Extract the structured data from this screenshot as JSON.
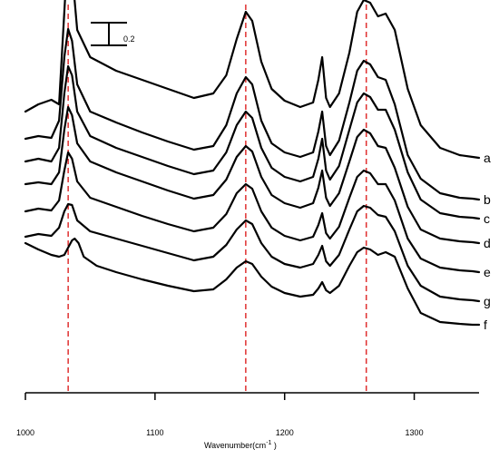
{
  "chart_data": {
    "type": "line",
    "title": "",
    "xlabel": "Wavenumber(cm",
    "xlabel_sup": "-1",
    "xlabel_suffix": " )",
    "xlim": [
      1000,
      1350
    ],
    "x_ticks": [
      1000,
      1100,
      1200,
      1300
    ],
    "reference_lines_x": [
      1033,
      1170,
      1263
    ],
    "reference_line_color": "#e03030",
    "scale_bar_label": "0.2",
    "series": [
      {
        "name": "a",
        "points": [
          [
            1000,
            310
          ],
          [
            1010,
            318
          ],
          [
            1020,
            323
          ],
          [
            1026,
            318
          ],
          [
            1030,
            420
          ],
          [
            1033,
            493
          ],
          [
            1036,
            465
          ],
          [
            1040,
            400
          ],
          [
            1050,
            370
          ],
          [
            1070,
            355
          ],
          [
            1090,
            345
          ],
          [
            1110,
            335
          ],
          [
            1130,
            325
          ],
          [
            1145,
            330
          ],
          [
            1155,
            350
          ],
          [
            1163,
            390
          ],
          [
            1170,
            420
          ],
          [
            1175,
            410
          ],
          [
            1182,
            365
          ],
          [
            1190,
            335
          ],
          [
            1200,
            322
          ],
          [
            1212,
            315
          ],
          [
            1222,
            320
          ],
          [
            1226,
            345
          ],
          [
            1229,
            370
          ],
          [
            1232,
            325
          ],
          [
            1235,
            315
          ],
          [
            1242,
            330
          ],
          [
            1250,
            375
          ],
          [
            1256,
            420
          ],
          [
            1261,
            433
          ],
          [
            1266,
            430
          ],
          [
            1272,
            415
          ],
          [
            1278,
            418
          ],
          [
            1285,
            400
          ],
          [
            1295,
            335
          ],
          [
            1305,
            295
          ],
          [
            1320,
            270
          ],
          [
            1335,
            262
          ],
          [
            1345,
            260
          ],
          [
            1350,
            259
          ]
        ]
      },
      {
        "name": "b",
        "points": [
          [
            1000,
            280
          ],
          [
            1010,
            283
          ],
          [
            1020,
            281
          ],
          [
            1026,
            300
          ],
          [
            1030,
            370
          ],
          [
            1033,
            401
          ],
          [
            1036,
            388
          ],
          [
            1040,
            340
          ],
          [
            1050,
            310
          ],
          [
            1070,
            298
          ],
          [
            1090,
            287
          ],
          [
            1110,
            277
          ],
          [
            1130,
            268
          ],
          [
            1145,
            272
          ],
          [
            1155,
            295
          ],
          [
            1163,
            330
          ],
          [
            1170,
            348
          ],
          [
            1175,
            340
          ],
          [
            1182,
            300
          ],
          [
            1190,
            275
          ],
          [
            1200,
            265
          ],
          [
            1212,
            260
          ],
          [
            1222,
            265
          ],
          [
            1226,
            288
          ],
          [
            1229,
            310
          ],
          [
            1232,
            272
          ],
          [
            1235,
            262
          ],
          [
            1242,
            278
          ],
          [
            1250,
            320
          ],
          [
            1256,
            355
          ],
          [
            1261,
            366
          ],
          [
            1266,
            362
          ],
          [
            1272,
            348
          ],
          [
            1278,
            345
          ],
          [
            1285,
            318
          ],
          [
            1295,
            262
          ],
          [
            1305,
            236
          ],
          [
            1320,
            220
          ],
          [
            1335,
            215
          ],
          [
            1345,
            214
          ],
          [
            1350,
            213
          ]
        ]
      },
      {
        "name": "c",
        "points": [
          [
            1000,
            255
          ],
          [
            1010,
            258
          ],
          [
            1020,
            255
          ],
          [
            1026,
            270
          ],
          [
            1030,
            330
          ],
          [
            1033,
            360
          ],
          [
            1036,
            350
          ],
          [
            1040,
            310
          ],
          [
            1050,
            283
          ],
          [
            1070,
            270
          ],
          [
            1090,
            260
          ],
          [
            1110,
            250
          ],
          [
            1130,
            241
          ],
          [
            1145,
            245
          ],
          [
            1155,
            265
          ],
          [
            1163,
            295
          ],
          [
            1170,
            310
          ],
          [
            1175,
            303
          ],
          [
            1182,
            270
          ],
          [
            1190,
            248
          ],
          [
            1200,
            238
          ],
          [
            1212,
            233
          ],
          [
            1222,
            238
          ],
          [
            1226,
            258
          ],
          [
            1229,
            280
          ],
          [
            1232,
            245
          ],
          [
            1235,
            235
          ],
          [
            1242,
            250
          ],
          [
            1250,
            290
          ],
          [
            1256,
            320
          ],
          [
            1261,
            330
          ],
          [
            1266,
            326
          ],
          [
            1272,
            312
          ],
          [
            1278,
            312
          ],
          [
            1285,
            290
          ],
          [
            1295,
            243
          ],
          [
            1305,
            213
          ],
          [
            1320,
            198
          ],
          [
            1335,
            194
          ],
          [
            1345,
            193
          ],
          [
            1350,
            192
          ]
        ]
      },
      {
        "name": "d",
        "points": [
          [
            1000,
            230
          ],
          [
            1010,
            232
          ],
          [
            1020,
            230
          ],
          [
            1026,
            243
          ],
          [
            1030,
            290
          ],
          [
            1033,
            315
          ],
          [
            1036,
            306
          ],
          [
            1040,
            275
          ],
          [
            1050,
            255
          ],
          [
            1070,
            243
          ],
          [
            1090,
            233
          ],
          [
            1110,
            223
          ],
          [
            1130,
            214
          ],
          [
            1145,
            218
          ],
          [
            1155,
            235
          ],
          [
            1163,
            260
          ],
          [
            1170,
            272
          ],
          [
            1175,
            266
          ],
          [
            1182,
            238
          ],
          [
            1190,
            218
          ],
          [
            1200,
            209
          ],
          [
            1212,
            204
          ],
          [
            1222,
            209
          ],
          [
            1226,
            226
          ],
          [
            1229,
            245
          ],
          [
            1232,
            215
          ],
          [
            1235,
            206
          ],
          [
            1242,
            220
          ],
          [
            1250,
            255
          ],
          [
            1256,
            282
          ],
          [
            1261,
            290
          ],
          [
            1266,
            286
          ],
          [
            1272,
            272
          ],
          [
            1278,
            270
          ],
          [
            1285,
            248
          ],
          [
            1295,
            205
          ],
          [
            1305,
            180
          ],
          [
            1320,
            170
          ],
          [
            1335,
            167
          ],
          [
            1345,
            166
          ],
          [
            1350,
            165
          ]
        ]
      },
      {
        "name": "e",
        "points": [
          [
            1000,
            200
          ],
          [
            1010,
            203
          ],
          [
            1020,
            201
          ],
          [
            1026,
            212
          ],
          [
            1030,
            245
          ],
          [
            1033,
            265
          ],
          [
            1036,
            258
          ],
          [
            1040,
            233
          ],
          [
            1050,
            215
          ],
          [
            1070,
            205
          ],
          [
            1090,
            195
          ],
          [
            1110,
            186
          ],
          [
            1130,
            178
          ],
          [
            1145,
            182
          ],
          [
            1155,
            197
          ],
          [
            1163,
            220
          ],
          [
            1170,
            230
          ],
          [
            1175,
            225
          ],
          [
            1182,
            200
          ],
          [
            1190,
            182
          ],
          [
            1200,
            173
          ],
          [
            1212,
            168
          ],
          [
            1222,
            172
          ],
          [
            1226,
            185
          ],
          [
            1229,
            198
          ],
          [
            1232,
            176
          ],
          [
            1235,
            170
          ],
          [
            1242,
            183
          ],
          [
            1250,
            215
          ],
          [
            1256,
            238
          ],
          [
            1261,
            245
          ],
          [
            1266,
            242
          ],
          [
            1272,
            230
          ],
          [
            1278,
            230
          ],
          [
            1285,
            212
          ],
          [
            1295,
            170
          ],
          [
            1305,
            148
          ],
          [
            1320,
            138
          ],
          [
            1335,
            135
          ],
          [
            1345,
            134
          ],
          [
            1350,
            133
          ]
        ]
      },
      {
        "name": "g",
        "points": [
          [
            1000,
            172
          ],
          [
            1010,
            175
          ],
          [
            1020,
            173
          ],
          [
            1026,
            182
          ],
          [
            1030,
            200
          ],
          [
            1033,
            208
          ],
          [
            1036,
            207
          ],
          [
            1040,
            190
          ],
          [
            1050,
            178
          ],
          [
            1070,
            170
          ],
          [
            1090,
            162
          ],
          [
            1110,
            154
          ],
          [
            1130,
            146
          ],
          [
            1145,
            150
          ],
          [
            1155,
            163
          ],
          [
            1163,
            180
          ],
          [
            1170,
            190
          ],
          [
            1175,
            186
          ],
          [
            1182,
            165
          ],
          [
            1190,
            150
          ],
          [
            1200,
            142
          ],
          [
            1212,
            138
          ],
          [
            1222,
            142
          ],
          [
            1226,
            152
          ],
          [
            1229,
            162
          ],
          [
            1232,
            145
          ],
          [
            1235,
            140
          ],
          [
            1242,
            152
          ],
          [
            1250,
            180
          ],
          [
            1256,
            200
          ],
          [
            1261,
            206
          ],
          [
            1266,
            204
          ],
          [
            1272,
            196
          ],
          [
            1278,
            194
          ],
          [
            1285,
            178
          ],
          [
            1295,
            140
          ],
          [
            1305,
            118
          ],
          [
            1320,
            106
          ],
          [
            1335,
            103
          ],
          [
            1345,
            102
          ],
          [
            1350,
            101
          ]
        ]
      },
      {
        "name": "f",
        "points": [
          [
            1000,
            165
          ],
          [
            1010,
            158
          ],
          [
            1020,
            152
          ],
          [
            1026,
            150
          ],
          [
            1030,
            152
          ],
          [
            1033,
            160
          ],
          [
            1036,
            168
          ],
          [
            1038,
            170
          ],
          [
            1041,
            165
          ],
          [
            1045,
            150
          ],
          [
            1055,
            140
          ],
          [
            1070,
            133
          ],
          [
            1090,
            125
          ],
          [
            1110,
            118
          ],
          [
            1130,
            112
          ],
          [
            1145,
            114
          ],
          [
            1155,
            125
          ],
          [
            1163,
            138
          ],
          [
            1170,
            145
          ],
          [
            1175,
            142
          ],
          [
            1182,
            128
          ],
          [
            1190,
            117
          ],
          [
            1200,
            110
          ],
          [
            1212,
            106
          ],
          [
            1222,
            108
          ],
          [
            1226,
            115
          ],
          [
            1229,
            122
          ],
          [
            1232,
            113
          ],
          [
            1235,
            110
          ],
          [
            1242,
            118
          ],
          [
            1250,
            140
          ],
          [
            1256,
            155
          ],
          [
            1261,
            160
          ],
          [
            1266,
            158
          ],
          [
            1272,
            152
          ],
          [
            1278,
            155
          ],
          [
            1285,
            150
          ],
          [
            1295,
            115
          ],
          [
            1305,
            88
          ],
          [
            1320,
            78
          ],
          [
            1335,
            76
          ],
          [
            1345,
            75
          ],
          [
            1350,
            75
          ]
        ]
      }
    ]
  }
}
